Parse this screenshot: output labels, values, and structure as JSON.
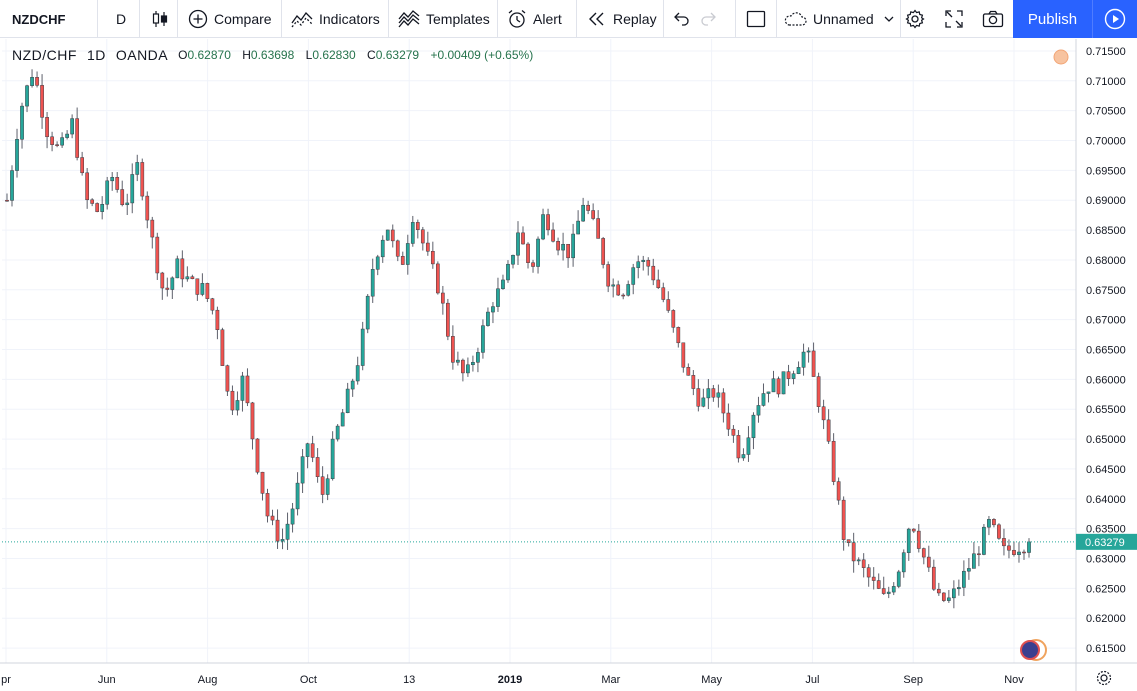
{
  "toolbar": {
    "symbol": "NZDCHF",
    "interval": "D",
    "compare": "Compare",
    "indicators": "Indicators",
    "templates": "Templates",
    "alert": "Alert",
    "replay": "Replay",
    "layout_name": "Unnamed",
    "publish": "Publish"
  },
  "legend": {
    "symbol": "NZD/CHF",
    "interval": "1D",
    "source": "OANDA",
    "open_key": "O",
    "open": "0.62870",
    "high_key": "H",
    "high": "0.63698",
    "low_key": "L",
    "low": "0.62830",
    "close_key": "C",
    "close": "0.63279",
    "change": "+0.00409 (+0.65%)"
  },
  "colors": {
    "up": "#26a69a",
    "down": "#ef5350",
    "accent": "#2962ff",
    "last_price": "#26a69a"
  },
  "chart_data": {
    "type": "candlestick",
    "price_axis": [
      "0.71500",
      "0.71000",
      "0.70500",
      "0.70000",
      "0.69500",
      "0.69000",
      "0.68500",
      "0.68000",
      "0.67500",
      "0.67000",
      "0.66500",
      "0.66000",
      "0.65500",
      "0.65000",
      "0.64500",
      "0.64000",
      "0.63500",
      "0.63000",
      "0.62500",
      "0.62000",
      "0.61500"
    ],
    "ylim": [
      0.6125,
      0.717
    ],
    "time_axis": [
      "pr",
      "Jun",
      "Aug",
      "Oct",
      "13",
      "2019",
      "Mar",
      "May",
      "Jul",
      "Sep",
      "Nov"
    ],
    "time_axis_bold": [
      "2019"
    ],
    "last_price": 0.63279,
    "last_price_label": "0.63279",
    "close_path": [
      [
        "Apr",
        0.69
      ],
      [
        "Apr",
        0.705
      ],
      [
        "Apr",
        0.712
      ],
      [
        "Apr",
        0.702
      ],
      [
        "May",
        0.698
      ],
      [
        "May",
        0.703
      ],
      [
        "May",
        0.69
      ],
      [
        "May",
        0.688
      ],
      [
        "Jun",
        0.694
      ],
      [
        "Jun",
        0.689
      ],
      [
        "Jun",
        0.696
      ],
      [
        "Jun",
        0.684
      ],
      [
        "Jul",
        0.674
      ],
      [
        "Jul",
        0.679
      ],
      [
        "Jul",
        0.676
      ],
      [
        "Jul",
        0.675
      ],
      [
        "Aug",
        0.67
      ],
      [
        "Aug",
        0.655
      ],
      [
        "Aug",
        0.66
      ],
      [
        "Aug",
        0.647
      ],
      [
        "Sep",
        0.636
      ],
      [
        "Sep",
        0.633
      ],
      [
        "Sep",
        0.64
      ],
      [
        "Oct",
        0.65
      ],
      [
        "Oct",
        0.64
      ],
      [
        "Oct",
        0.65
      ],
      [
        "Oct",
        0.657
      ],
      [
        "Nov",
        0.665
      ],
      [
        "Nov",
        0.68
      ],
      [
        "Nov",
        0.686
      ],
      [
        "Nov",
        0.678
      ],
      [
        "Dec",
        0.688
      ],
      [
        "Dec",
        0.681
      ],
      [
        "Dec",
        0.675
      ],
      [
        "Dec",
        0.664
      ],
      [
        "Jan",
        0.66
      ],
      [
        "Jan",
        0.666
      ],
      [
        "Jan",
        0.673
      ],
      [
        "Jan",
        0.676
      ],
      [
        "Feb",
        0.685
      ],
      [
        "Feb",
        0.678
      ],
      [
        "Feb",
        0.688
      ],
      [
        "Feb",
        0.683
      ],
      [
        "Mar",
        0.681
      ],
      [
        "Mar",
        0.69
      ],
      [
        "Mar",
        0.684
      ],
      [
        "Mar",
        0.676
      ],
      [
        "Apr",
        0.675
      ],
      [
        "Apr",
        0.68
      ],
      [
        "Apr",
        0.679
      ],
      [
        "Apr",
        0.674
      ],
      [
        "May",
        0.667
      ],
      [
        "May",
        0.66
      ],
      [
        "May",
        0.656
      ],
      [
        "May",
        0.658
      ],
      [
        "Jun",
        0.653
      ],
      [
        "Jun",
        0.647
      ],
      [
        "Jun",
        0.655
      ],
      [
        "Jun",
        0.659
      ],
      [
        "Jul",
        0.659
      ],
      [
        "Jul",
        0.662
      ],
      [
        "Jul",
        0.665
      ],
      [
        "Jul",
        0.656
      ],
      [
        "Aug",
        0.645
      ],
      [
        "Aug",
        0.632
      ],
      [
        "Aug",
        0.629
      ],
      [
        "Aug",
        0.626
      ],
      [
        "Aug",
        0.623
      ],
      [
        "Sep",
        0.628
      ],
      [
        "Sep",
        0.637
      ],
      [
        "Sep",
        0.63
      ],
      [
        "Sep",
        0.623
      ],
      [
        "Oct",
        0.623
      ],
      [
        "Oct",
        0.627
      ],
      [
        "Oct",
        0.631
      ],
      [
        "Oct",
        0.636
      ],
      [
        "Nov",
        0.631
      ],
      [
        "Nov",
        0.632
      ],
      [
        "Nov",
        0.6328
      ]
    ]
  }
}
